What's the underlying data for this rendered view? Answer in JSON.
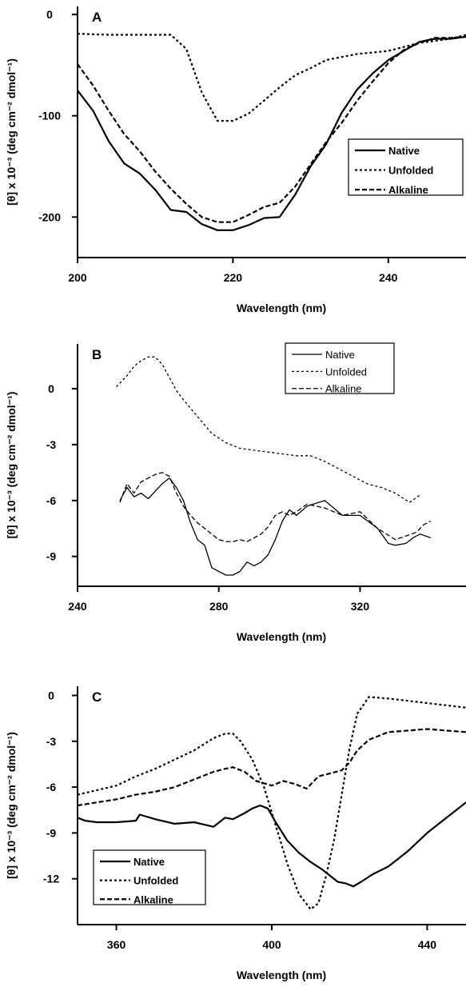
{
  "chart_data": [
    {
      "type": "line",
      "panel": "A",
      "xlabel": "Wavelength (nm)",
      "ylabel": "[θ] x 10⁻³ (deg cm⁻² dmol⁻¹)",
      "xlim": [
        200,
        250
      ],
      "ylim": [
        -240,
        8
      ],
      "xticks": [
        200,
        220,
        240
      ],
      "yticks": [
        0,
        -100,
        -200
      ],
      "grid": false,
      "legend": "right",
      "series": [
        {
          "name": "Native",
          "style": "solid",
          "x": [
            200,
            202,
            204,
            206,
            208,
            210,
            212,
            214,
            216,
            218,
            220,
            222,
            224,
            226,
            228,
            230,
            232,
            234,
            236,
            238,
            240,
            242,
            244,
            246,
            248,
            250
          ],
          "y": [
            -75,
            -95,
            -125,
            -147,
            -157,
            -173,
            -193,
            -195,
            -207,
            -213,
            -213,
            -208,
            -201,
            -200,
            -178,
            -150,
            -128,
            -97,
            -74,
            -58,
            -45,
            -36,
            -27,
            -24,
            -24,
            -22
          ]
        },
        {
          "name": "Unfolded",
          "style": "dotted",
          "x": [
            200,
            204,
            208,
            212,
            214,
            216,
            218,
            220,
            222,
            224,
            226,
            228,
            230,
            232,
            236,
            240,
            244,
            248,
            250
          ],
          "y": [
            -19,
            -20,
            -20,
            -20,
            -34,
            -77,
            -105,
            -105,
            -98,
            -85,
            -72,
            -60,
            -53,
            -45,
            -39,
            -36,
            -28,
            -24,
            -20
          ]
        },
        {
          "name": "Alkaline",
          "style": "dashed",
          "x": [
            200,
            202,
            204,
            206,
            208,
            210,
            212,
            214,
            216,
            218,
            220,
            222,
            224,
            226,
            228,
            230,
            232,
            234,
            236,
            238,
            240,
            242,
            244,
            246,
            248,
            250
          ],
          "y": [
            -49,
            -70,
            -95,
            -118,
            -135,
            -155,
            -172,
            -187,
            -200,
            -205,
            -205,
            -198,
            -190,
            -186,
            -170,
            -148,
            -126,
            -107,
            -85,
            -66,
            -48,
            -35,
            -28,
            -23,
            -23,
            -22
          ]
        }
      ]
    },
    {
      "type": "line",
      "panel": "B",
      "xlabel": "Wavelength (nm)",
      "ylabel": "[θ] x 10⁻³ (deg cm⁻² dmol⁻¹)",
      "xlim": [
        240,
        350
      ],
      "ylim": [
        -10.6,
        2.4
      ],
      "xticks": [
        240,
        280,
        320
      ],
      "yticks": [
        0,
        -3,
        -6,
        -9
      ],
      "grid": false,
      "legend": "top-right",
      "series": [
        {
          "name": "Native",
          "style": "solid",
          "x": [
            252,
            254,
            256,
            258,
            260,
            262,
            264,
            266,
            268,
            270,
            272,
            274,
            276,
            278,
            280,
            282,
            284,
            286,
            288,
            290,
            292,
            294,
            296,
            298,
            300,
            302,
            305,
            310,
            315,
            320,
            325,
            328,
            330,
            333,
            335,
            337,
            340
          ],
          "y": [
            -6.0,
            -5.3,
            -5.8,
            -5.6,
            -5.9,
            -5.5,
            -5.1,
            -4.8,
            -5.3,
            -6.0,
            -7.2,
            -8.1,
            -8.4,
            -9.6,
            -9.8,
            -10.0,
            -10.0,
            -9.8,
            -9.3,
            -9.5,
            -9.3,
            -8.9,
            -8.1,
            -7.1,
            -6.5,
            -6.8,
            -6.3,
            -6.0,
            -6.8,
            -6.8,
            -7.5,
            -8.3,
            -8.4,
            -8.3,
            -8.0,
            -7.8,
            -8.0
          ]
        },
        {
          "name": "Unfolded",
          "style": "dotted",
          "x": [
            251,
            254,
            256,
            258,
            260,
            262,
            264,
            266,
            268,
            270,
            274,
            278,
            282,
            286,
            290,
            294,
            298,
            302,
            306,
            310,
            314,
            318,
            322,
            326,
            330,
            334,
            337
          ],
          "y": [
            0.1,
            0.7,
            1.2,
            1.5,
            1.7,
            1.7,
            1.3,
            0.6,
            -0.1,
            -0.6,
            -1.5,
            -2.4,
            -2.9,
            -3.2,
            -3.3,
            -3.4,
            -3.5,
            -3.6,
            -3.6,
            -3.9,
            -4.3,
            -4.7,
            -5.1,
            -5.3,
            -5.6,
            -6.1,
            -5.7
          ]
        },
        {
          "name": "Alkaline",
          "style": "dashed",
          "x": [
            252,
            254,
            256,
            258,
            260,
            262,
            264,
            266,
            268,
            270,
            272,
            274,
            276,
            278,
            280,
            282,
            284,
            286,
            288,
            290,
            292,
            294,
            296,
            298,
            300,
            302,
            305,
            310,
            315,
            320,
            325,
            330,
            333,
            336,
            338,
            340
          ],
          "y": [
            -6.1,
            -5.1,
            -5.6,
            -5.0,
            -4.8,
            -4.6,
            -4.5,
            -4.7,
            -5.6,
            -6.3,
            -6.8,
            -7.2,
            -7.5,
            -7.8,
            -8.1,
            -8.2,
            -8.2,
            -8.1,
            -8.2,
            -8.0,
            -7.8,
            -7.4,
            -6.8,
            -6.6,
            -6.8,
            -6.6,
            -6.2,
            -6.4,
            -6.8,
            -6.6,
            -7.5,
            -8.1,
            -7.9,
            -7.7,
            -7.3,
            -7.1
          ]
        }
      ]
    },
    {
      "type": "line",
      "panel": "C",
      "xlabel": "Wavelength (nm)",
      "ylabel": "[θ] x 10⁻³ (deg cm⁻² dmol⁻¹)",
      "xlim": [
        350,
        450
      ],
      "ylim": [
        -15,
        0.6
      ],
      "xticks": [
        360,
        400,
        440
      ],
      "yticks": [
        0,
        -3,
        -6,
        -9,
        -12
      ],
      "grid": false,
      "legend": "bottom-left",
      "series": [
        {
          "name": "Native",
          "style": "solid",
          "x": [
            350,
            352,
            355,
            360,
            365,
            366,
            370,
            375,
            380,
            385,
            388,
            390,
            393,
            395,
            397,
            399,
            401,
            404,
            407,
            410,
            413,
            415,
            417,
            419,
            421,
            423,
            426,
            430,
            435,
            440,
            445,
            450
          ],
          "y": [
            -8.0,
            -8.2,
            -8.3,
            -8.3,
            -8.2,
            -7.8,
            -8.1,
            -8.4,
            -8.3,
            -8.6,
            -8.0,
            -8.1,
            -7.7,
            -7.4,
            -7.2,
            -7.4,
            -8.3,
            -9.5,
            -10.3,
            -10.9,
            -11.4,
            -11.8,
            -12.2,
            -12.3,
            -12.5,
            -12.2,
            -11.7,
            -11.2,
            -10.2,
            -9.0,
            -8.0,
            -7.0
          ]
        },
        {
          "name": "Unfolded",
          "style": "dotted",
          "x": [
            350,
            355,
            360,
            365,
            370,
            375,
            380,
            385,
            388,
            390,
            392,
            395,
            398,
            401,
            404,
            407,
            410,
            412,
            414,
            416,
            418,
            420,
            422,
            425,
            430,
            440,
            450
          ],
          "y": [
            -6.5,
            -6.2,
            -5.9,
            -5.3,
            -4.8,
            -4.2,
            -3.6,
            -2.8,
            -2.5,
            -2.5,
            -3.0,
            -4.2,
            -6.0,
            -8.5,
            -11.0,
            -13.0,
            -14.0,
            -13.6,
            -11.8,
            -9.5,
            -6.5,
            -3.5,
            -1.2,
            -0.1,
            -0.2,
            -0.5,
            -0.8
          ]
        },
        {
          "name": "Alkaline",
          "style": "dashed",
          "x": [
            350,
            355,
            360,
            365,
            370,
            375,
            380,
            385,
            388,
            390,
            393,
            396,
            400,
            403,
            406,
            409,
            412,
            415,
            418,
            420,
            422,
            425,
            430,
            440,
            450
          ],
          "y": [
            -7.2,
            -7.0,
            -6.8,
            -6.5,
            -6.3,
            -6.0,
            -5.5,
            -5.0,
            -4.8,
            -4.7,
            -5.0,
            -5.6,
            -5.9,
            -5.6,
            -5.8,
            -6.1,
            -5.3,
            -5.1,
            -4.9,
            -4.4,
            -3.6,
            -2.9,
            -2.4,
            -2.2,
            -2.4
          ]
        }
      ]
    }
  ]
}
